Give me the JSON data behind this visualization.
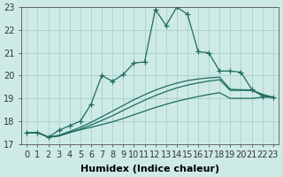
{
  "xlabel": "Humidex (Indice chaleur)",
  "background_color": "#ceeae6",
  "grid_color": "#aacfcb",
  "line_color": "#1e6b5e",
  "xlim": [
    -0.5,
    23.5
  ],
  "ylim": [
    17,
    23
  ],
  "yticks": [
    17,
    18,
    19,
    20,
    21,
    22,
    23
  ],
  "xticks": [
    0,
    1,
    2,
    3,
    4,
    5,
    6,
    7,
    8,
    9,
    10,
    11,
    12,
    13,
    14,
    15,
    16,
    17,
    18,
    19,
    20,
    21,
    22,
    23
  ],
  "spiky_x": [
    0,
    1,
    2,
    3,
    4,
    5,
    6,
    7,
    8,
    9,
    10,
    11,
    12,
    13,
    14,
    15,
    16,
    17,
    18,
    19,
    20,
    21,
    22,
    23
  ],
  "spiky_y": [
    17.5,
    17.5,
    17.3,
    17.6,
    17.8,
    18.0,
    18.75,
    20.0,
    19.75,
    20.05,
    20.55,
    20.6,
    22.9,
    22.2,
    23.0,
    22.7,
    21.05,
    21.0,
    20.2,
    20.2,
    20.15,
    19.4,
    19.1,
    19.05
  ],
  "smooth1_x": [
    0,
    1,
    2,
    3,
    4,
    5,
    6,
    7,
    8,
    9,
    10,
    11,
    12,
    13,
    14,
    15,
    16,
    17,
    18,
    19,
    20,
    21,
    22,
    23
  ],
  "smooth1_y": [
    17.5,
    17.5,
    17.3,
    17.35,
    17.5,
    17.62,
    17.73,
    17.85,
    17.97,
    18.12,
    18.28,
    18.44,
    18.6,
    18.74,
    18.87,
    18.98,
    19.08,
    19.17,
    19.25,
    19.0,
    19.0,
    19.0,
    19.05,
    19.05
  ],
  "smooth2_x": [
    0,
    1,
    2,
    3,
    4,
    5,
    6,
    7,
    8,
    9,
    10,
    11,
    12,
    13,
    14,
    15,
    16,
    17,
    18,
    19,
    20,
    21,
    22,
    23
  ],
  "smooth2_y": [
    17.5,
    17.5,
    17.3,
    17.35,
    17.5,
    17.65,
    17.83,
    18.03,
    18.24,
    18.47,
    18.7,
    18.92,
    19.12,
    19.3,
    19.46,
    19.58,
    19.68,
    19.76,
    19.82,
    19.35,
    19.35,
    19.35,
    19.15,
    19.05
  ],
  "smooth3_x": [
    0,
    1,
    2,
    3,
    4,
    5,
    6,
    7,
    8,
    9,
    10,
    11,
    12,
    13,
    14,
    15,
    16,
    17,
    18,
    19,
    20,
    21,
    22,
    23
  ],
  "smooth3_y": [
    17.5,
    17.5,
    17.3,
    17.38,
    17.55,
    17.73,
    17.95,
    18.19,
    18.44,
    18.69,
    18.94,
    19.16,
    19.36,
    19.53,
    19.67,
    19.78,
    19.85,
    19.9,
    19.93,
    19.4,
    19.38,
    19.37,
    19.18,
    19.05
  ],
  "fontsize_label": 8,
  "fontsize_tick": 7
}
